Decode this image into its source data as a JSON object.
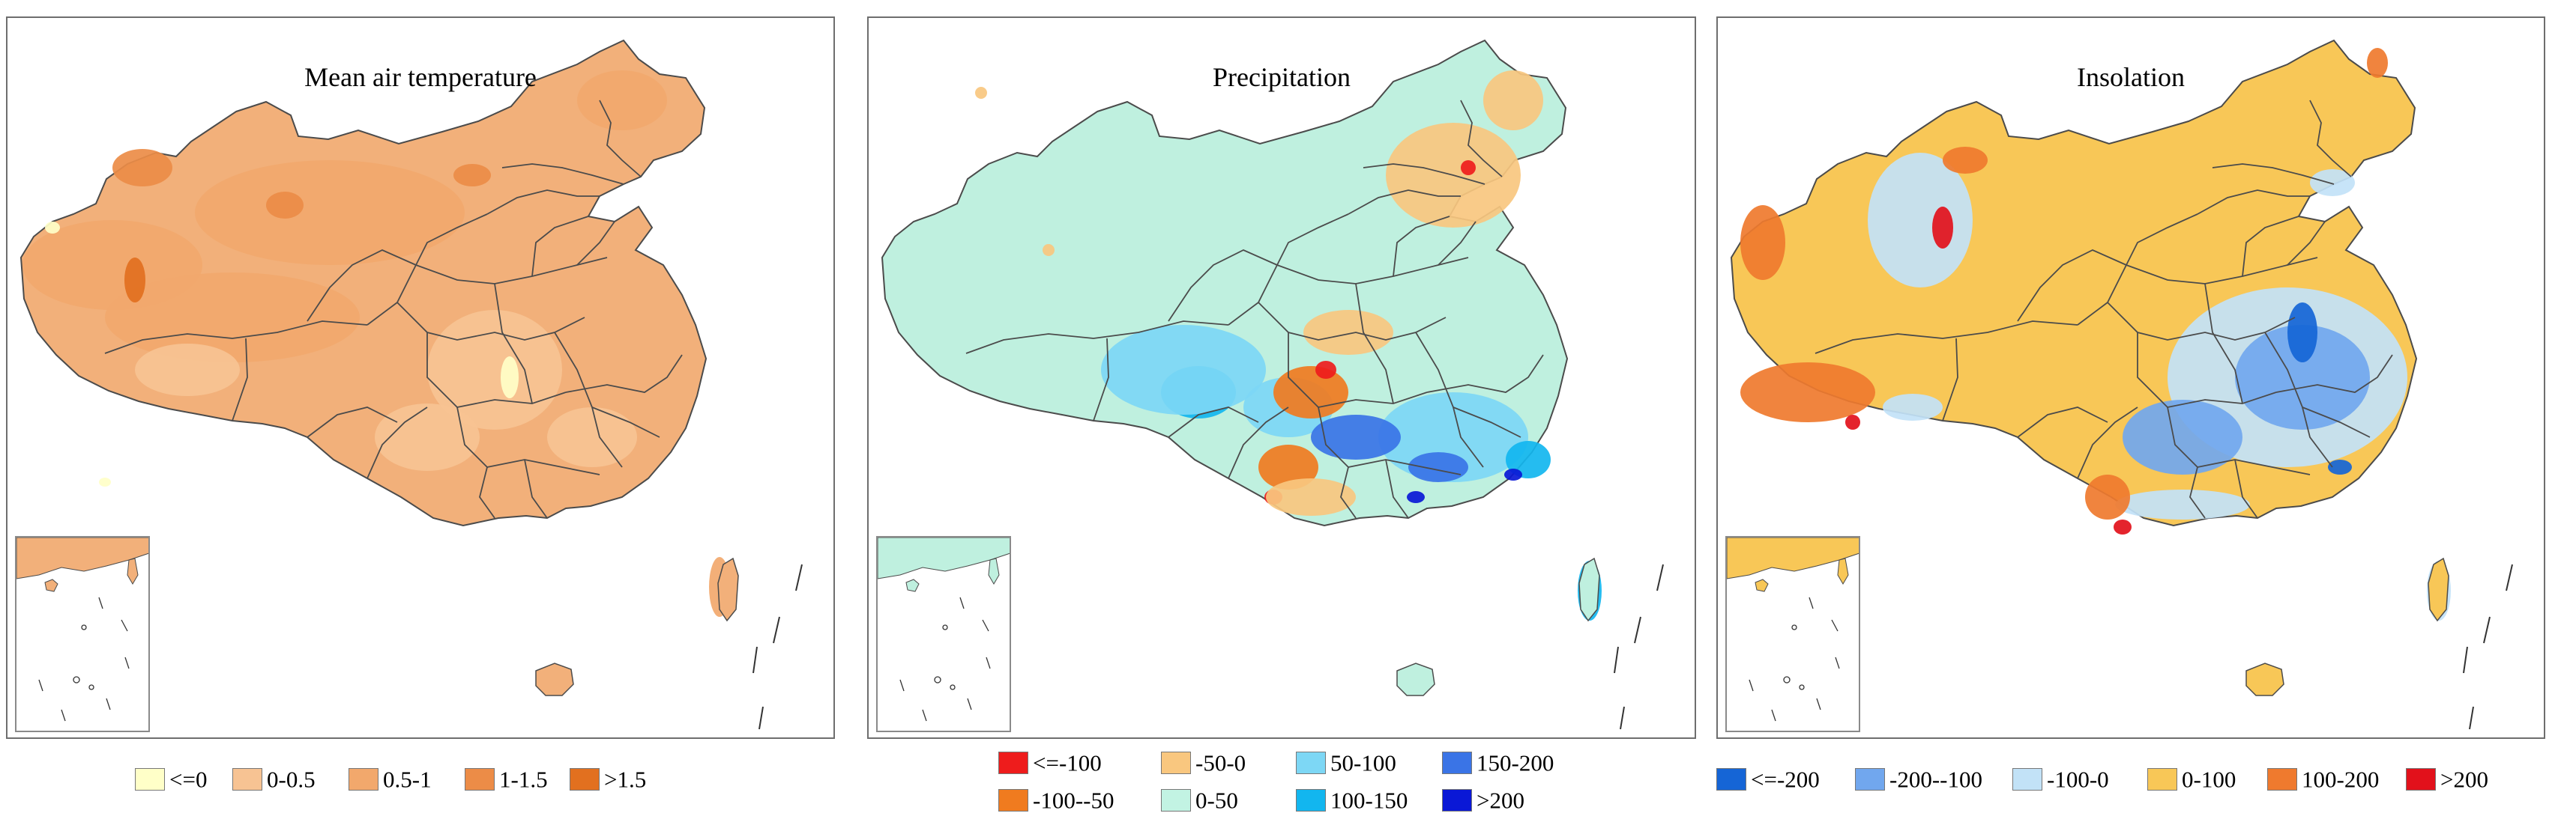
{
  "panels": [
    {
      "title": "Mean air temperature",
      "base_color": "#f2b07a",
      "legend": [
        {
          "label": "<=0",
          "color": "#ffffc8"
        },
        {
          "label": "0-0.5",
          "color": "#f7c393"
        },
        {
          "label": "0.5-1",
          "color": "#f2a86c"
        },
        {
          "label": "1-1.5",
          "color": "#ec8c47"
        },
        {
          "label": ">1.5",
          "color": "#e2701f"
        }
      ]
    },
    {
      "title": "Precipitation",
      "base_color": "#bff0df",
      "legend": [
        {
          "label": "<=-100",
          "color": "#ee1c1c"
        },
        {
          "label": "-50-0",
          "color": "#f9c77f"
        },
        {
          "label": "50-100",
          "color": "#7dd7f5"
        },
        {
          "label": "150-200",
          "color": "#3a74e6"
        },
        {
          "label": "-100--50",
          "color": "#f07b1f"
        },
        {
          "label": "0-50",
          "color": "#c2f3e3"
        },
        {
          "label": "100-150",
          "color": "#12b6ef"
        },
        {
          "label": ">200",
          "color": "#0a18d6"
        }
      ]
    },
    {
      "title": "Insolation",
      "base_color": "#f8c757",
      "legend": [
        {
          "label": "<=-200",
          "color": "#1565d6"
        },
        {
          "label": "-200--100",
          "color": "#71a7ee"
        },
        {
          "label": "-100-0",
          "color": "#c2e2f7"
        },
        {
          "label": "0-100",
          "color": "#f8c757"
        },
        {
          "label": "100-200",
          "color": "#ef7a2e"
        },
        {
          "label": ">200",
          "color": "#e2111b"
        }
      ]
    }
  ]
}
